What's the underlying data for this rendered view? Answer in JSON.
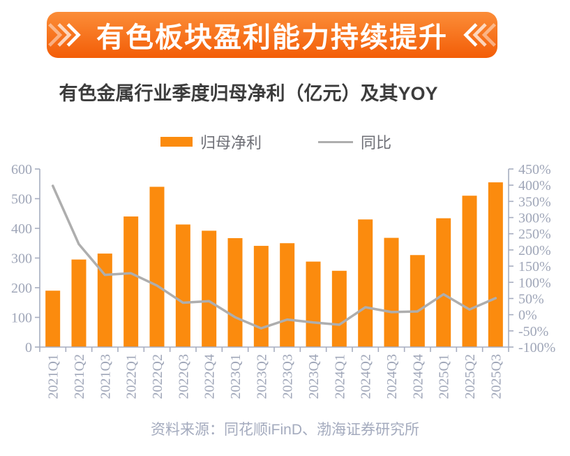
{
  "banner": {
    "title": "有色板块盈利能力持续提升"
  },
  "chart_title": "有色金属行业季度归母净利（亿元）及其YOY",
  "legend": {
    "bar_label": "归母净利",
    "line_label": "同比"
  },
  "source_note": "资料来源：同花顺iFinD、渤海证券研究所",
  "colors": {
    "bar": "#FB8B0E",
    "line": "#AEAEAE",
    "axis": "#A7ADC0",
    "tick_label": "#9FA6B8",
    "title_text": "#3C3C3C",
    "legend_text": "#6E6F76",
    "source_text": "#A4ABBE",
    "banner_top": "#FB8D38",
    "banner_bottom": "#F35D07",
    "banner_text": "#FFFFFF"
  },
  "chart_data": {
    "type": "bar+line",
    "title": "有色金属行业季度归母净利（亿元）及其YOY",
    "categories": [
      "2021Q1",
      "2021Q2",
      "2021Q3",
      "2022Q1",
      "2022Q2",
      "2022Q3",
      "2022Q4",
      "2023Q1",
      "2023Q2",
      "2023Q3",
      "2023Q4",
      "2024Q1",
      "2024Q2",
      "2024Q3",
      "2024Q4",
      "2025Q1",
      "2025Q2",
      "2025Q3"
    ],
    "series": [
      {
        "name": "归母净利",
        "type": "bar",
        "axis": "left",
        "unit": "亿元",
        "values": [
          190,
          295,
          315,
          440,
          540,
          413,
          392,
          367,
          341,
          350,
          288,
          257,
          430,
          368,
          310,
          434,
          510,
          555
        ]
      },
      {
        "name": "同比",
        "type": "line",
        "axis": "right",
        "unit": "%",
        "values": [
          398,
          218,
          123,
          128,
          90,
          37,
          42,
          -8,
          -42,
          -15,
          -24,
          -31,
          23,
          8,
          10,
          63,
          16,
          51
        ]
      }
    ],
    "left_axis": {
      "min": 0,
      "max": 600,
      "step": 100,
      "tick_labels": [
        "0",
        "100",
        "200",
        "300",
        "400",
        "500",
        "600"
      ]
    },
    "right_axis": {
      "min": -100,
      "max": 450,
      "step": 50,
      "tick_labels": [
        "-100%",
        "-50%",
        "0%",
        "50%",
        "100%",
        "150%",
        "200%",
        "250%",
        "300%",
        "350%",
        "400%",
        "450%"
      ]
    },
    "grid": false,
    "legend_position": "top"
  }
}
